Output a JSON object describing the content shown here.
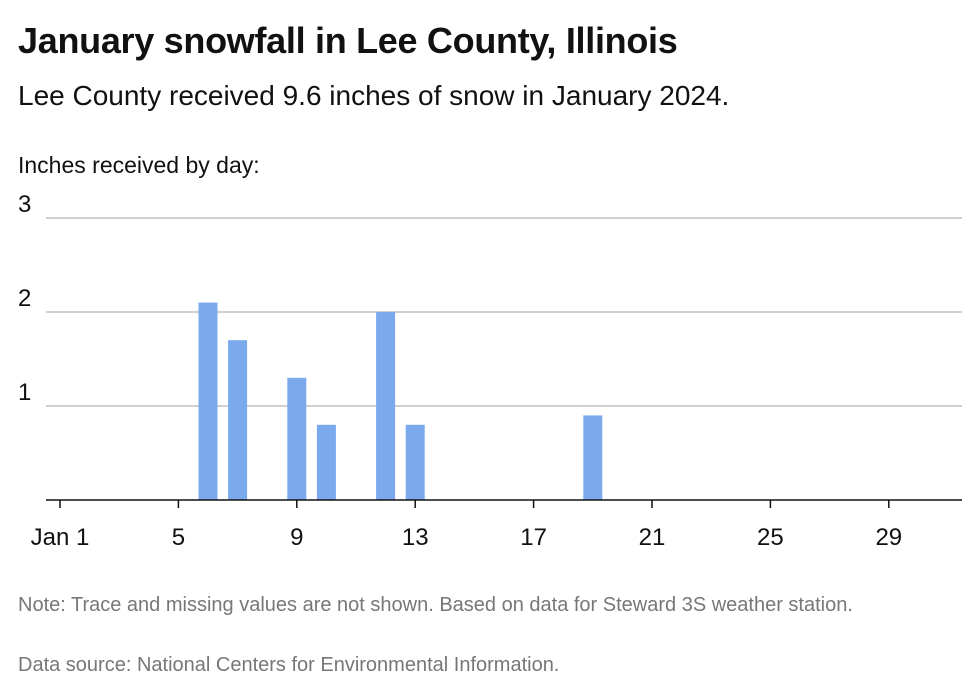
{
  "header": {
    "title": "January snowfall in Lee County, Illinois",
    "subtitle": "Lee County received 9.6 inches of snow in January 2024."
  },
  "footer": {
    "note": "Note: Trace and missing values are not shown. Based on data for Steward 3S weather station.",
    "source": "Data source: National Centers for Environmental Information."
  },
  "colors": {
    "bar": "#7aa9ee",
    "grid": "#b3b3b3",
    "text": "#111111",
    "footer_text": "#777777"
  },
  "chart_data": {
    "type": "bar",
    "title": "January snowfall in Lee County, Illinois",
    "ylabel": "Inches received by day:",
    "xlabel": "",
    "x_range": [
      1,
      31
    ],
    "ylim": [
      0,
      3
    ],
    "y_ticks": [
      1,
      2,
      3
    ],
    "x_ticks": [
      {
        "day": 1,
        "label": "Jan 1"
      },
      {
        "day": 5,
        "label": "5"
      },
      {
        "day": 9,
        "label": "9"
      },
      {
        "day": 13,
        "label": "13"
      },
      {
        "day": 17,
        "label": "17"
      },
      {
        "day": 21,
        "label": "21"
      },
      {
        "day": 25,
        "label": "25"
      },
      {
        "day": 29,
        "label": "29"
      }
    ],
    "grid": true,
    "points": [
      {
        "day": 6,
        "value": 2.1
      },
      {
        "day": 7,
        "value": 1.7
      },
      {
        "day": 9,
        "value": 1.3
      },
      {
        "day": 10,
        "value": 0.8
      },
      {
        "day": 12,
        "value": 2.0
      },
      {
        "day": 13,
        "value": 0.8
      },
      {
        "day": 19,
        "value": 0.9
      }
    ]
  }
}
